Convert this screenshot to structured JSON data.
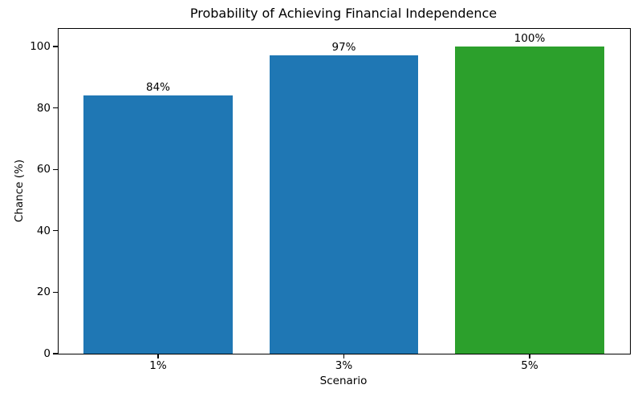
{
  "chart_data": {
    "type": "bar",
    "title": "Probability of Achieving Financial Independence",
    "xlabel": "Scenario",
    "ylabel": "Chance (%)",
    "categories": [
      "1%",
      "3%",
      "5%"
    ],
    "values": [
      84,
      97,
      100
    ],
    "bar_labels": [
      "84%",
      "97%",
      "100%"
    ],
    "bar_colors": [
      "#1f77b4",
      "#1f77b4",
      "#2ca02c"
    ],
    "yticks": [
      0,
      20,
      40,
      60,
      80,
      100
    ],
    "ylim": [
      0,
      106
    ],
    "grid": false,
    "legend_position": "none",
    "axis_color": "#000000",
    "text_color": "#000000",
    "background_color": "#ffffff"
  }
}
